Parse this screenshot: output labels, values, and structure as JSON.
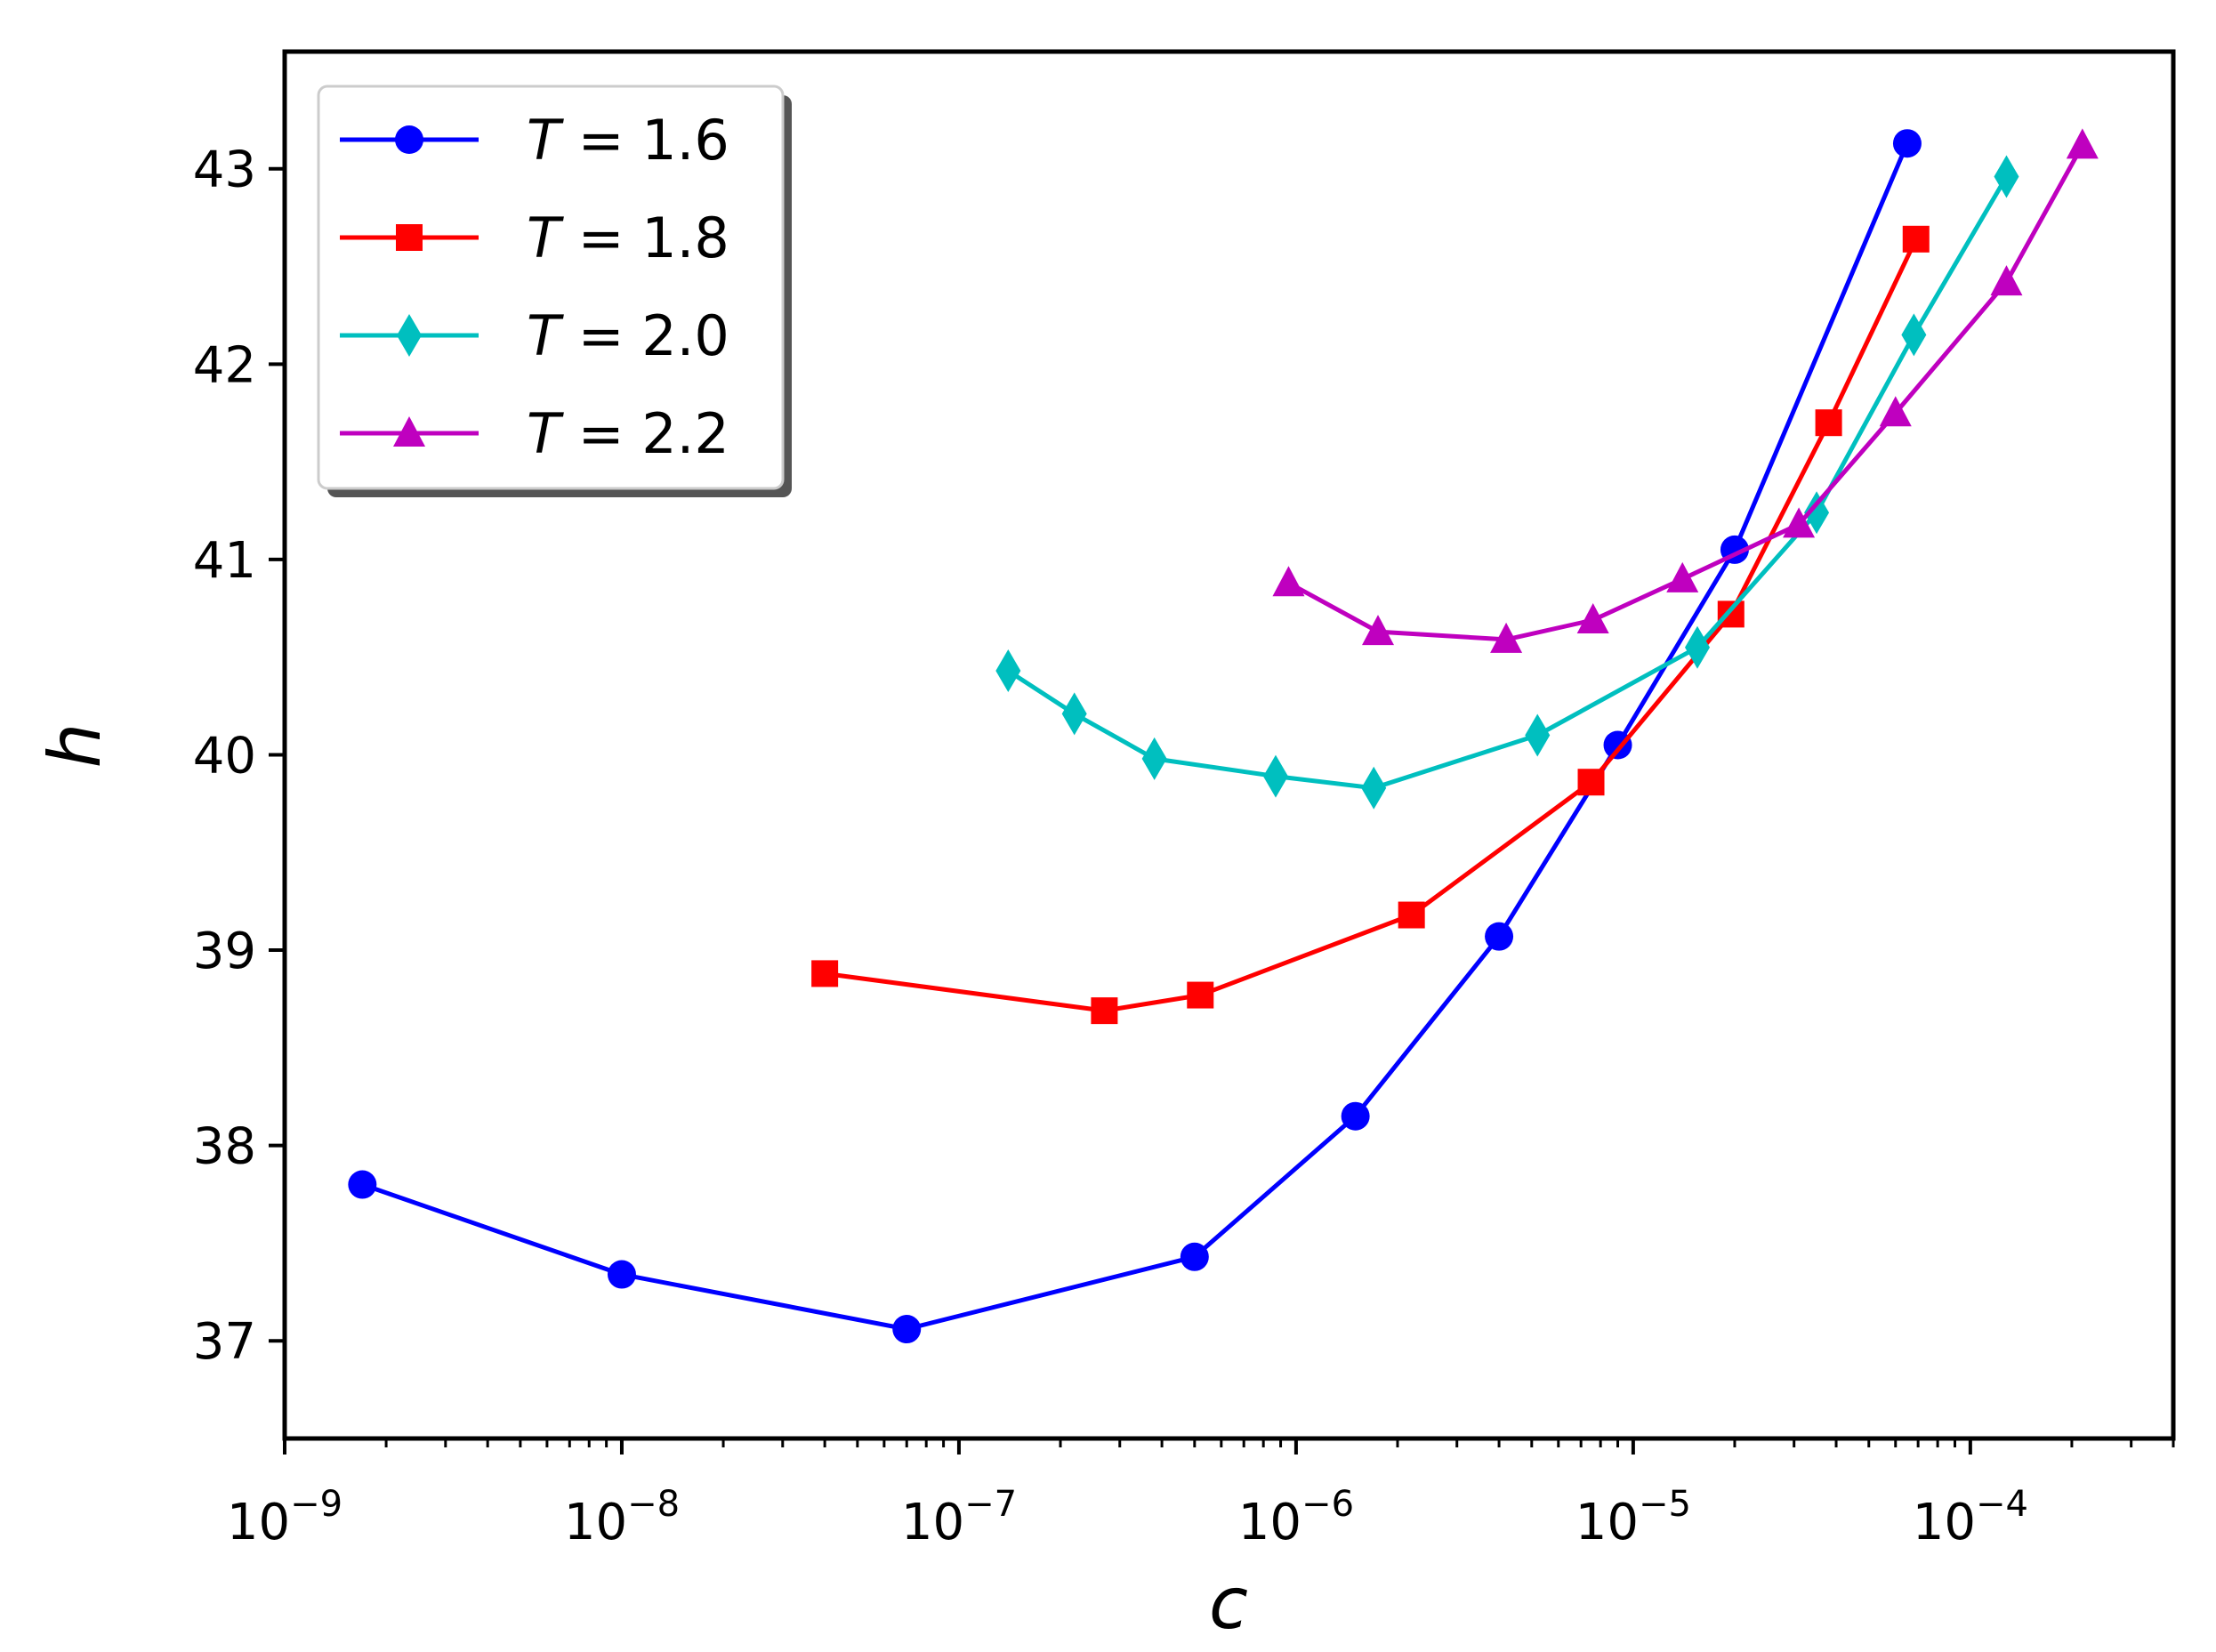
{
  "chart_data": {
    "type": "line",
    "title": "",
    "xlabel": "c",
    "ylabel": "h",
    "xscale": "log",
    "xlim": [
      1e-09,
      0.0004
    ],
    "ylim": [
      36.5,
      43.6
    ],
    "grid": false,
    "legend_position": "top-left",
    "x_ticks": [
      {
        "value": 1e-09,
        "base": "10",
        "exp": "−9"
      },
      {
        "value": 1e-08,
        "base": "10",
        "exp": "−8"
      },
      {
        "value": 1e-07,
        "base": "10",
        "exp": "−7"
      },
      {
        "value": 1e-06,
        "base": "10",
        "exp": "−6"
      },
      {
        "value": 1e-05,
        "base": "10",
        "exp": "−5"
      },
      {
        "value": 0.0001,
        "base": "10",
        "exp": "−4"
      }
    ],
    "y_ticks": [
      37,
      38,
      39,
      40,
      41,
      42,
      43
    ],
    "series": [
      {
        "name": "T = 1.6",
        "legend_var": "T",
        "legend_eq": " = 1.6",
        "color": "#0000ff",
        "marker": "circle",
        "x": [
          1.7e-09,
          1e-08,
          7e-08,
          5e-07,
          1.5e-06,
          4e-06,
          9e-06,
          2e-05,
          6.5e-05
        ],
        "y": [
          37.8,
          37.34,
          37.06,
          37.43,
          38.15,
          39.07,
          40.05,
          41.05,
          43.13
        ]
      },
      {
        "name": "T = 1.8",
        "legend_var": "T",
        "legend_eq": " = 1.8",
        "color": "#ff0000",
        "marker": "square",
        "x": [
          4e-08,
          2.7e-07,
          5.2e-07,
          2.2e-06,
          7.5e-06,
          1.95e-05,
          3.8e-05,
          6.9e-05
        ],
        "y": [
          38.88,
          38.69,
          38.77,
          39.18,
          39.86,
          40.72,
          41.7,
          42.64
        ]
      },
      {
        "name": "T = 2.0",
        "legend_var": "T",
        "legend_eq": " = 2.0",
        "color": "#00bfbf",
        "marker": "thin_diamond",
        "x": [
          1.4e-07,
          2.2e-07,
          3.8e-07,
          8.7e-07,
          1.7e-06,
          5.2e-06,
          1.55e-05,
          3.5e-05,
          6.8e-05,
          0.000128
        ],
        "y": [
          40.43,
          40.21,
          39.98,
          39.89,
          39.83,
          40.1,
          40.55,
          41.24,
          42.15,
          42.96
        ]
      },
      {
        "name": "T = 2.2",
        "legend_var": "T",
        "legend_eq": " = 2.2",
        "color": "#bf00bf",
        "marker": "triangle",
        "x": [
          9.5e-07,
          1.75e-06,
          4.2e-06,
          7.6e-06,
          1.4e-05,
          3.1e-05,
          6e-05,
          0.000128,
          0.000215
        ],
        "y": [
          40.88,
          40.63,
          40.59,
          40.69,
          40.9,
          41.18,
          41.75,
          42.42,
          43.12
        ]
      }
    ]
  }
}
